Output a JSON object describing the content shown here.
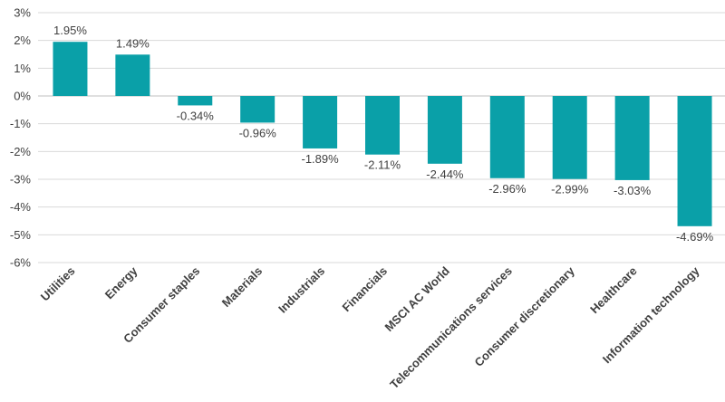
{
  "chart_data": {
    "type": "bar",
    "categories": [
      "Utilities",
      "Energy",
      "Consumer staples",
      "Materials",
      "Industrials",
      "Financials",
      "MSCI AC World",
      "Telecommunications services",
      "Consumer discretionary",
      "Healthcare",
      "Information technology"
    ],
    "values": [
      1.95,
      1.49,
      -0.34,
      -0.96,
      -1.89,
      -2.11,
      -2.44,
      -2.96,
      -2.99,
      -3.03,
      -4.69
    ],
    "data_labels": [
      "1.95%",
      "1.49%",
      "-0.34%",
      "-0.96%",
      "-1.89%",
      "-2.11%",
      "-2.44%",
      "-2.96%",
      "-2.99%",
      "-3.03%",
      "-4.69%"
    ],
    "y_ticks": [
      3,
      2,
      1,
      0,
      -1,
      -2,
      -3,
      -4,
      -5,
      -6
    ],
    "y_tick_labels": [
      "3%",
      "2%",
      "1%",
      "0%",
      "-1%",
      "-2%",
      "-3%",
      "-4%",
      "-5%",
      "-6%"
    ],
    "ylim": [
      -6,
      3
    ],
    "bar_color": "#0aa0a8",
    "title": "",
    "xlabel": "",
    "ylabel": "",
    "grid": true,
    "legend": "none"
  }
}
